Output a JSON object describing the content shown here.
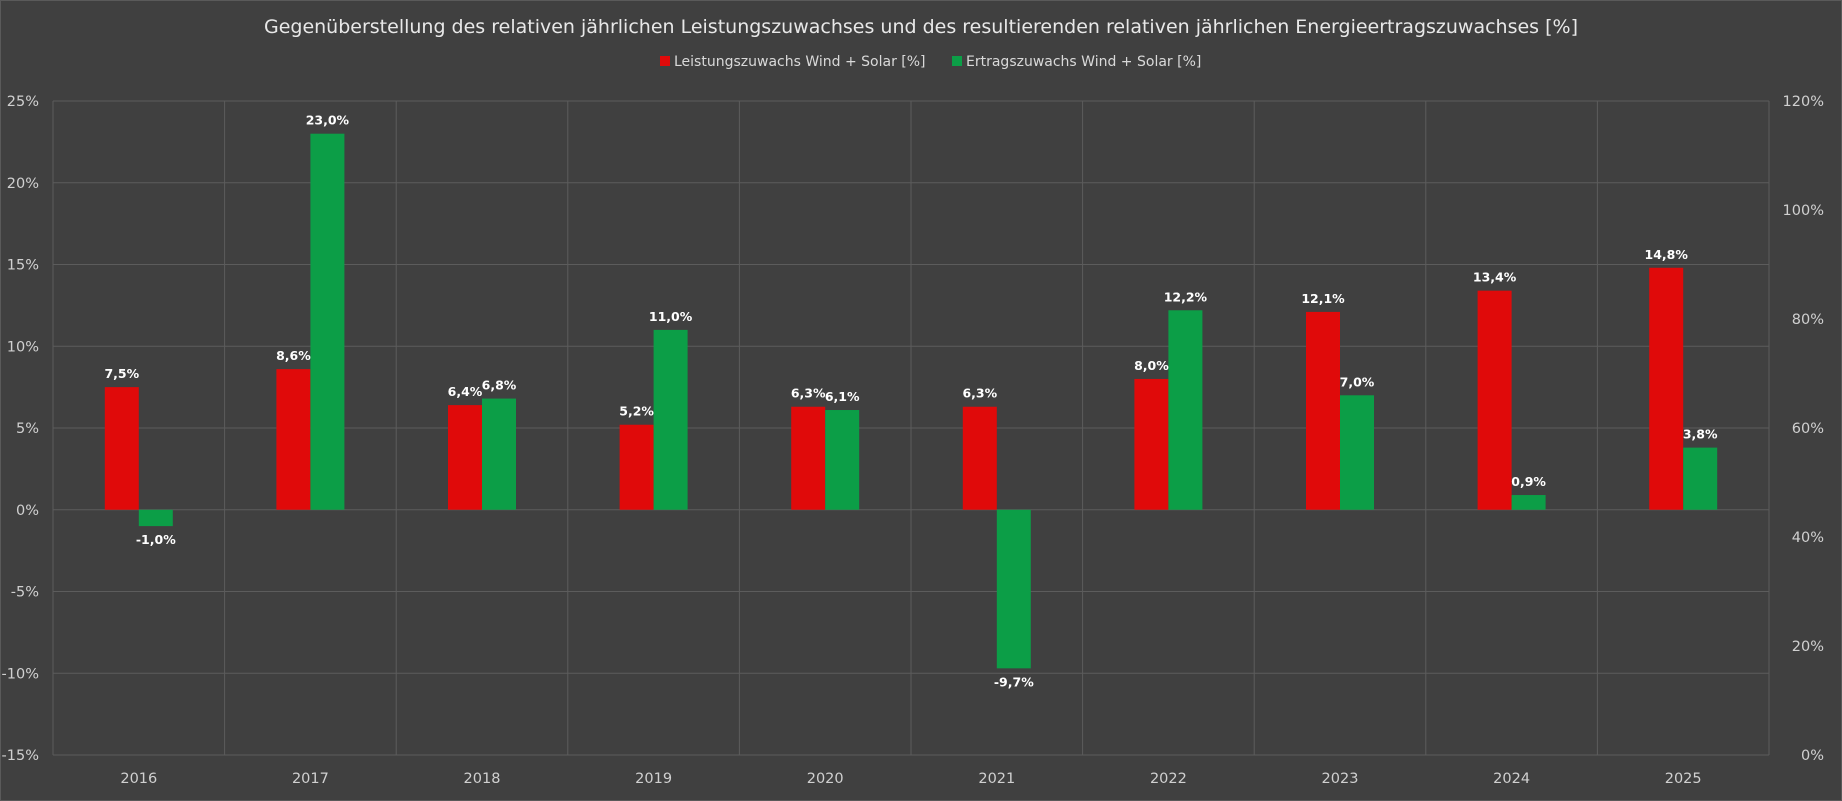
{
  "chart_data": {
    "type": "bar",
    "title": "Gegenüberstellung des relativen jährlichen Leistungszuwachses und des resultierenden relativen jährlichen Energieertragszuwachses [%]",
    "categories": [
      "2016",
      "2017",
      "2018",
      "2019",
      "2020",
      "2021",
      "2022",
      "2023",
      "2024",
      "2025"
    ],
    "series": [
      {
        "name": "Leistungszuwachs Wind + Solar [%]",
        "color": "#e00a0a",
        "values": [
          7.5,
          8.6,
          6.4,
          5.2,
          6.3,
          6.3,
          8.0,
          12.1,
          13.4,
          14.8
        ],
        "labels": [
          "7,5%",
          "8,6%",
          "6,4%",
          "5,2%",
          "6,3%",
          "6,3%",
          "8,0%",
          "12,1%",
          "13,4%",
          "14,8%"
        ]
      },
      {
        "name": "Ertragszuwachs Wind + Solar [%]",
        "color": "#0c9e47",
        "values": [
          -1.0,
          23.0,
          6.8,
          11.0,
          6.1,
          -9.7,
          12.2,
          7.0,
          0.9,
          3.8
        ],
        "labels": [
          "-1,0%",
          "23,0%",
          "6,8%",
          "11,0%",
          "6,1%",
          "-9,7%",
          "12,2%",
          "7,0%",
          "0,9%",
          "3,8%"
        ]
      }
    ],
    "ylim": [
      -15,
      25
    ],
    "yticks": [
      "25%",
      "20%",
      "15%",
      "10%",
      "5%",
      "0%",
      "-5%",
      "-10%",
      "-15%"
    ],
    "ytick_values": [
      25,
      20,
      15,
      10,
      5,
      0,
      -5,
      -10,
      -15
    ],
    "y2lim": [
      0,
      120
    ],
    "y2ticks": [
      "120%",
      "100%",
      "80%",
      "60%",
      "40%",
      "20%",
      "0%"
    ],
    "y2tick_values": [
      120,
      100,
      80,
      60,
      40,
      20,
      0
    ],
    "xlabel": "",
    "ylabel": "",
    "grid": true,
    "legend_position": "top-center"
  }
}
